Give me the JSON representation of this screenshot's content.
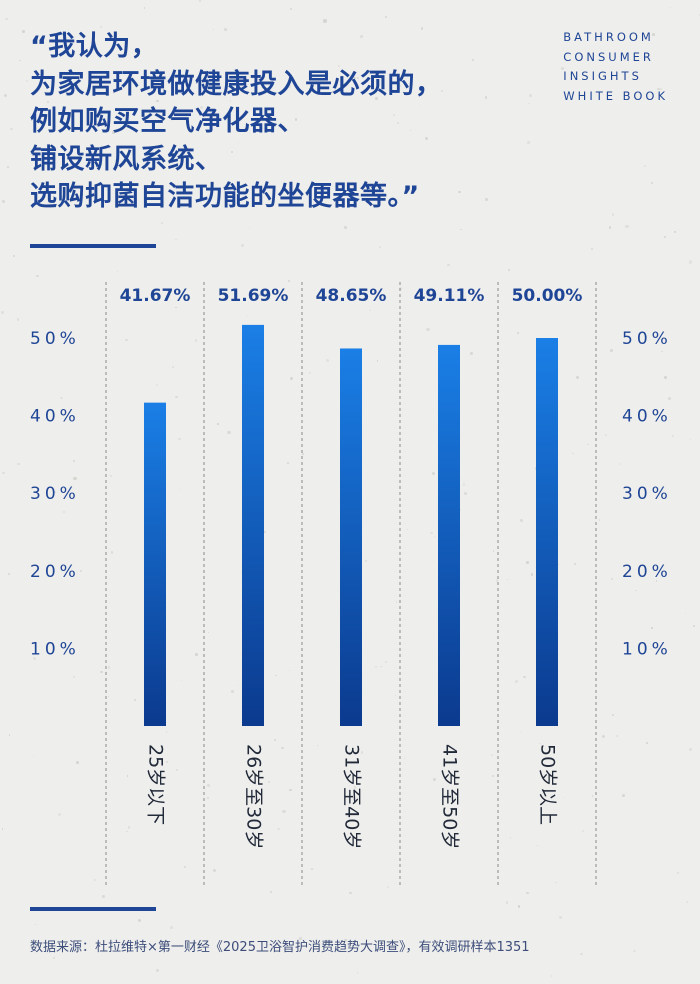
{
  "headline": {
    "lines": [
      "“我认为，",
      "为家居环境做健康投入是必须的，",
      "例如购买空气净化器、",
      "铺设新风系统、",
      "选购抑菌自洁功能的坐便器等。”"
    ]
  },
  "brand": {
    "lines": [
      "BATHROOM",
      "CONSUMER",
      "INSIGHTS",
      "WHITE BOOK"
    ]
  },
  "colors": {
    "text": "#1f4596",
    "bar_top": "#1a7fe6",
    "bar_bottom": "#0b3a8e",
    "gridline": "#8a8a8a"
  },
  "chart_data": {
    "type": "bar",
    "categories": [
      "25岁以下",
      "26岁至30岁",
      "31岁至40岁",
      "41岁至50岁",
      "50岁以上"
    ],
    "values": [
      41.67,
      51.69,
      48.65,
      49.11,
      50.0
    ],
    "data_labels": [
      "41.67%",
      "51.69%",
      "48.65%",
      "49.11%",
      "50.00%"
    ],
    "y_ticks": [
      10,
      20,
      30,
      40,
      50
    ],
    "y_tick_labels": [
      "10%",
      "20%",
      "30%",
      "40%",
      "50%"
    ],
    "ylim": [
      0,
      60
    ],
    "axis_labels_both_sides": true,
    "grid": "vertical dashed separators",
    "unit": "%"
  },
  "source": "数据来源：杜拉维特×第一财经《2025卫浴智护消费趋势大调查》，有效调研样本1351"
}
